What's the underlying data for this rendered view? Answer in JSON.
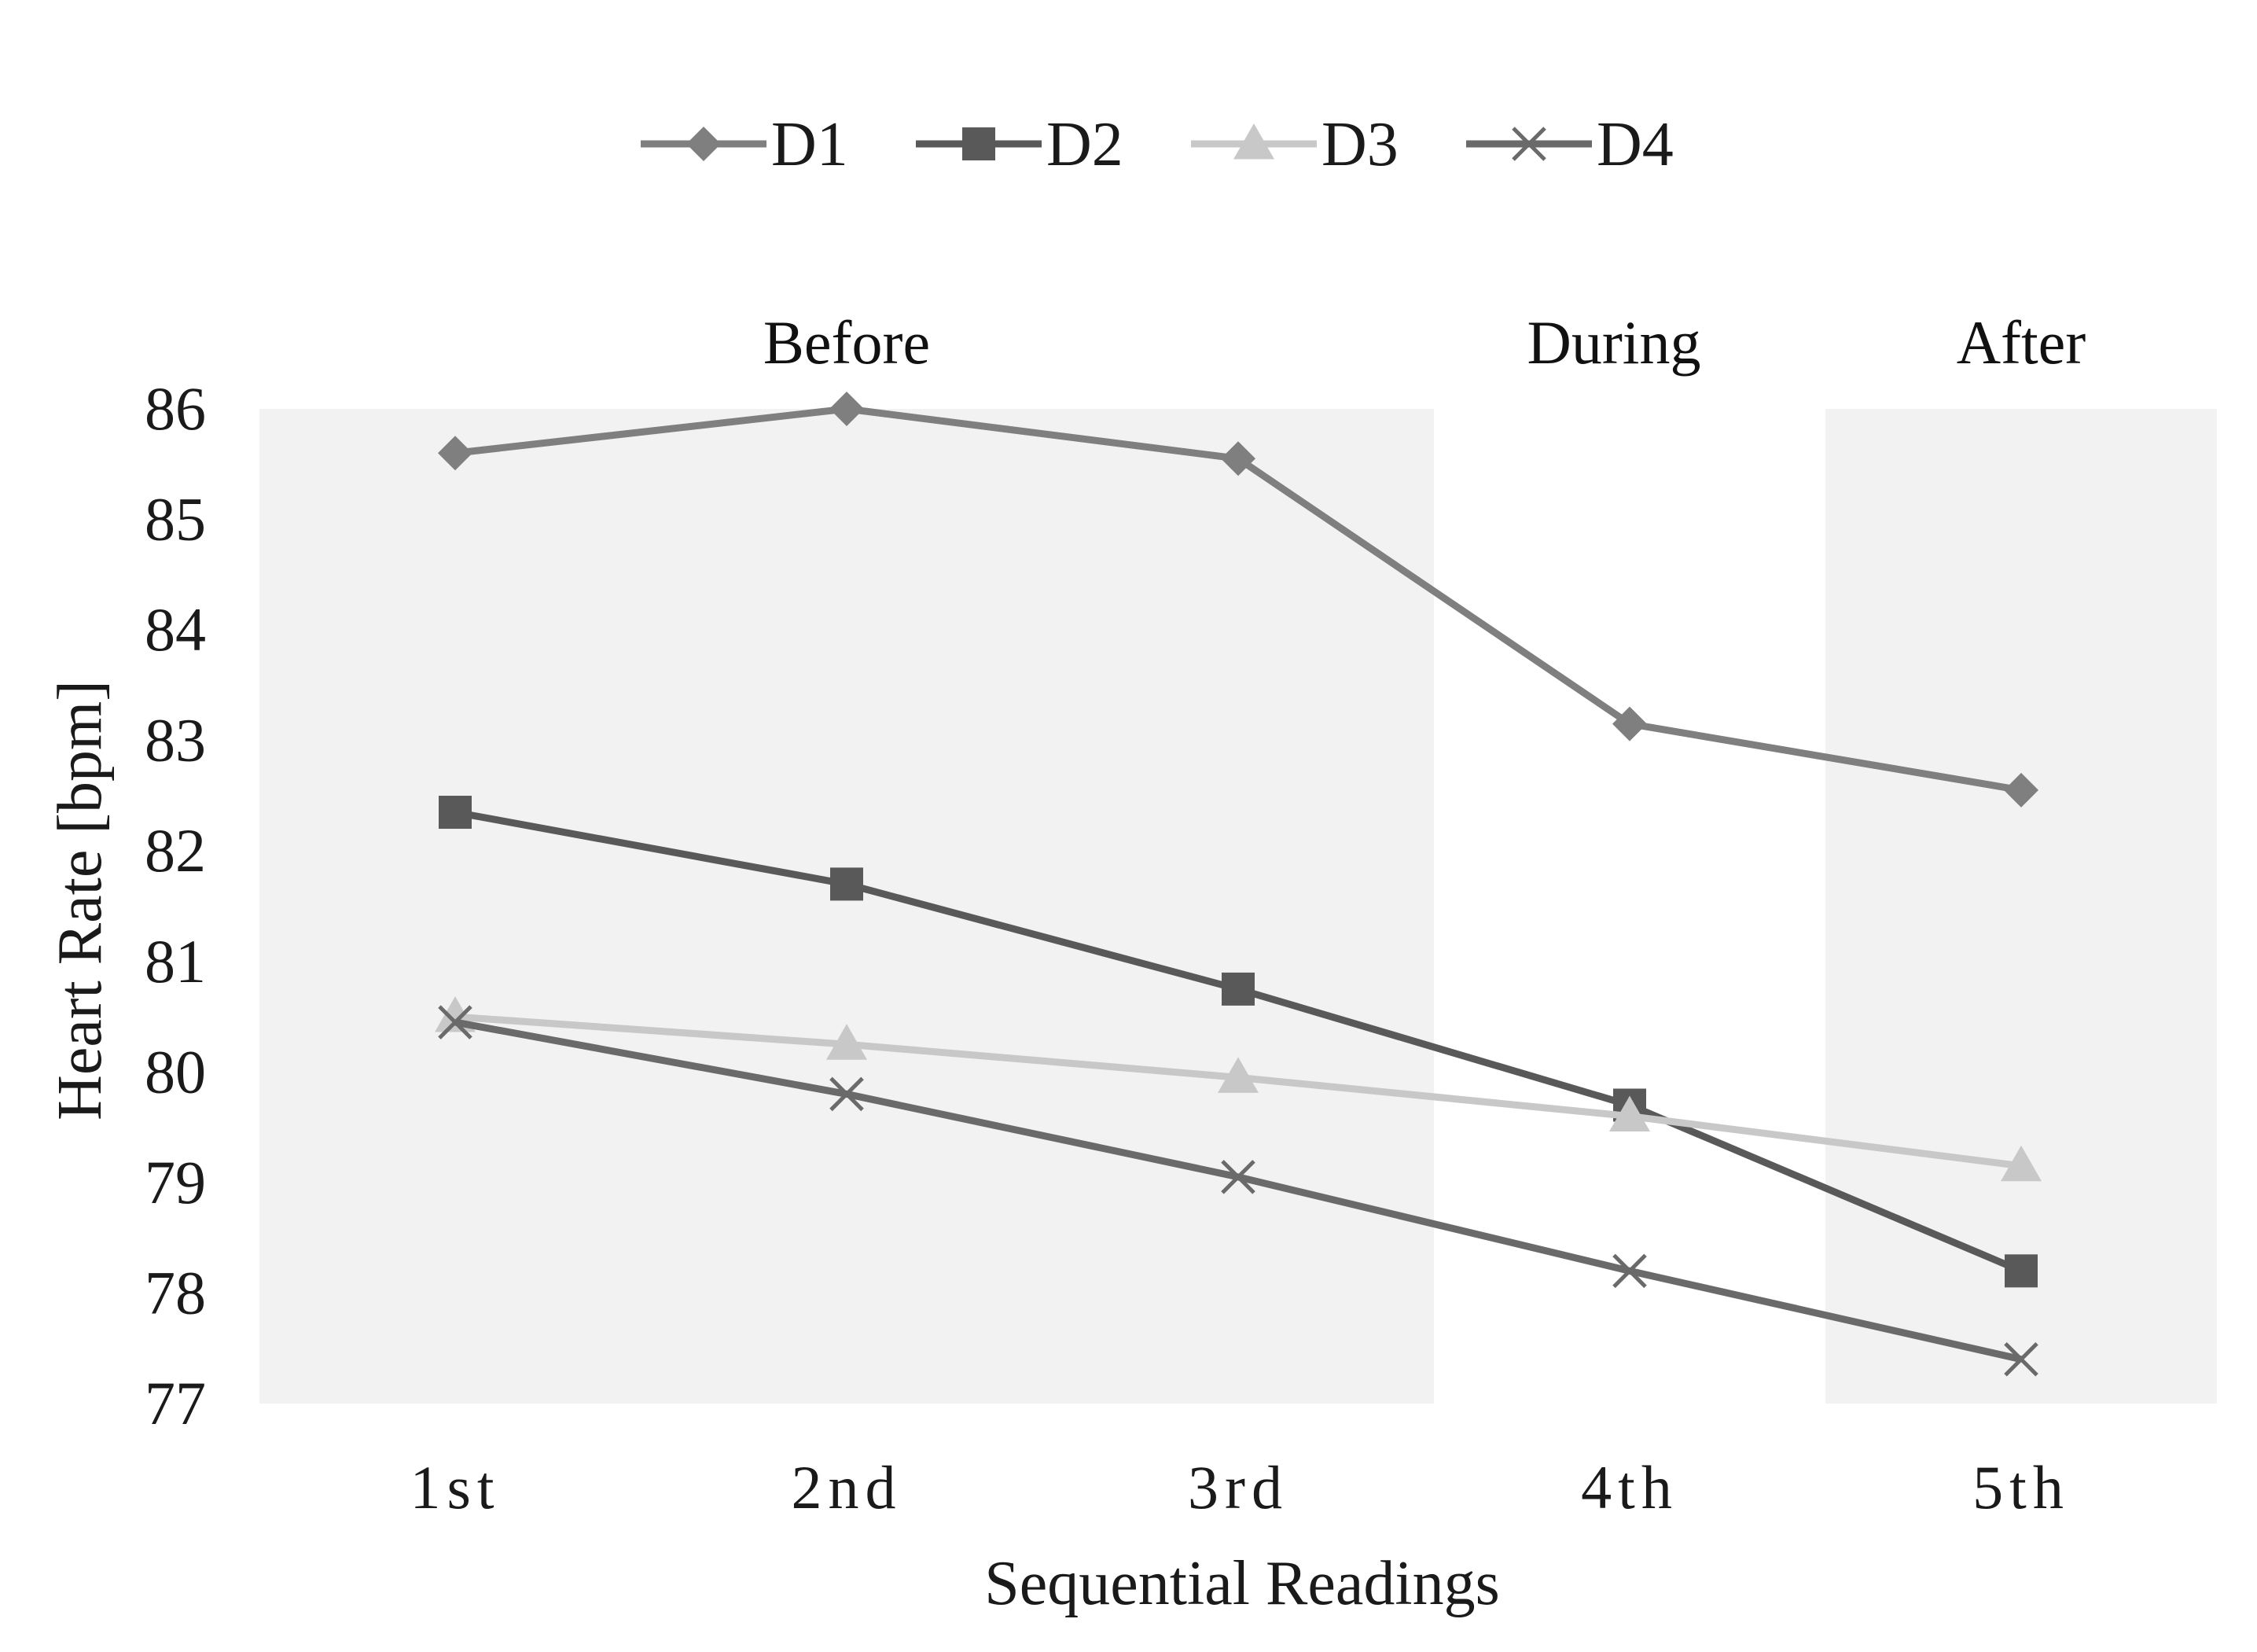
{
  "chart_data": {
    "type": "line",
    "title": "",
    "xlabel": "Sequential Readings",
    "ylabel": "Heart Rate [bpm]",
    "categories": [
      "1st",
      "2nd",
      "3rd",
      "4th",
      "5th"
    ],
    "ylim": [
      77,
      86
    ],
    "yticks": [
      86,
      85,
      84,
      83,
      82,
      81,
      80,
      79,
      78,
      77
    ],
    "grid": false,
    "legend_position": "top-center",
    "phases": [
      {
        "label": "Before",
        "from": 0,
        "to": 2,
        "shaded": true
      },
      {
        "label": "During",
        "from": 3,
        "to": 3,
        "shaded": false
      },
      {
        "label": "After",
        "from": 4,
        "to": 4,
        "shaded": true
      }
    ],
    "series": [
      {
        "name": "D1",
        "marker": "diamond",
        "color": "#7f7f7f",
        "values": [
          85.6,
          86.0,
          85.55,
          83.15,
          82.55
        ]
      },
      {
        "name": "D2",
        "marker": "square",
        "color": "#595959",
        "values": [
          82.35,
          81.7,
          80.75,
          79.7,
          78.2
        ]
      },
      {
        "name": "D3",
        "marker": "triangle",
        "color": "#c8c8c8",
        "values": [
          80.5,
          80.25,
          79.95,
          79.6,
          79.15
        ]
      },
      {
        "name": "D4",
        "marker": "x",
        "color": "#6a6a6a",
        "values": [
          80.45,
          79.8,
          79.05,
          78.2,
          77.4
        ]
      }
    ]
  }
}
